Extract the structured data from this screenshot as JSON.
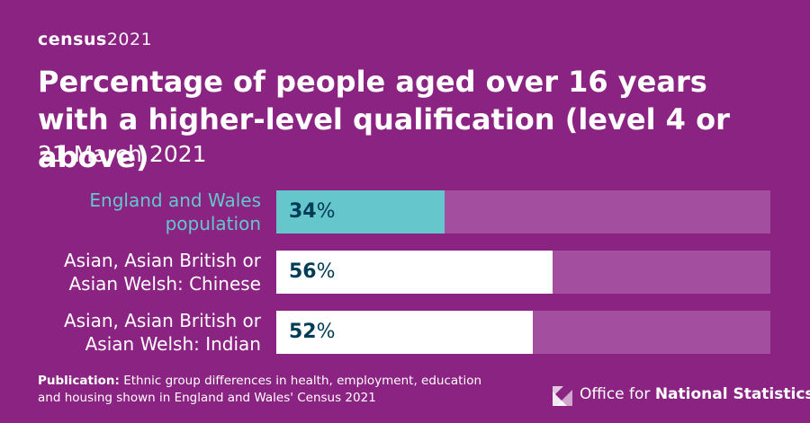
{
  "brand": {
    "word": "census",
    "year": "2021"
  },
  "colors": {
    "background": "#8b2382",
    "track": "#a44e9f",
    "highlight": "#65c6cc",
    "bar": "#ffffff",
    "value_text": "#003c57"
  },
  "chart_data": {
    "type": "bar",
    "orientation": "horizontal",
    "title": "Percentage of people aged over 16 years with a higher-level qualification (level 4 or above)",
    "subtitle": "21 March 2021",
    "xlim": [
      0,
      100
    ],
    "value_suffix": "%",
    "bars": [
      {
        "label_line1": "England and Wales",
        "label_line2": "population",
        "value": 34,
        "color": "#65c6cc",
        "label_color": "#65c6cc"
      },
      {
        "label_line1": "Asian, Asian British or",
        "label_line2": "Asian Welsh: Chinese",
        "value": 56,
        "color": "#ffffff",
        "label_color": "#ffffff"
      },
      {
        "label_line1": "Asian, Asian British or",
        "label_line2": "Asian Welsh: Indian",
        "value": 52,
        "color": "#ffffff",
        "label_color": "#ffffff"
      }
    ]
  },
  "footer": {
    "label": "Publication:",
    "text": "Ethnic group differences in health, employment, education and housing shown in England and Wales' Census 2021"
  },
  "ons_logo": {
    "prefix": "Office for ",
    "bold": "National Statistics"
  }
}
